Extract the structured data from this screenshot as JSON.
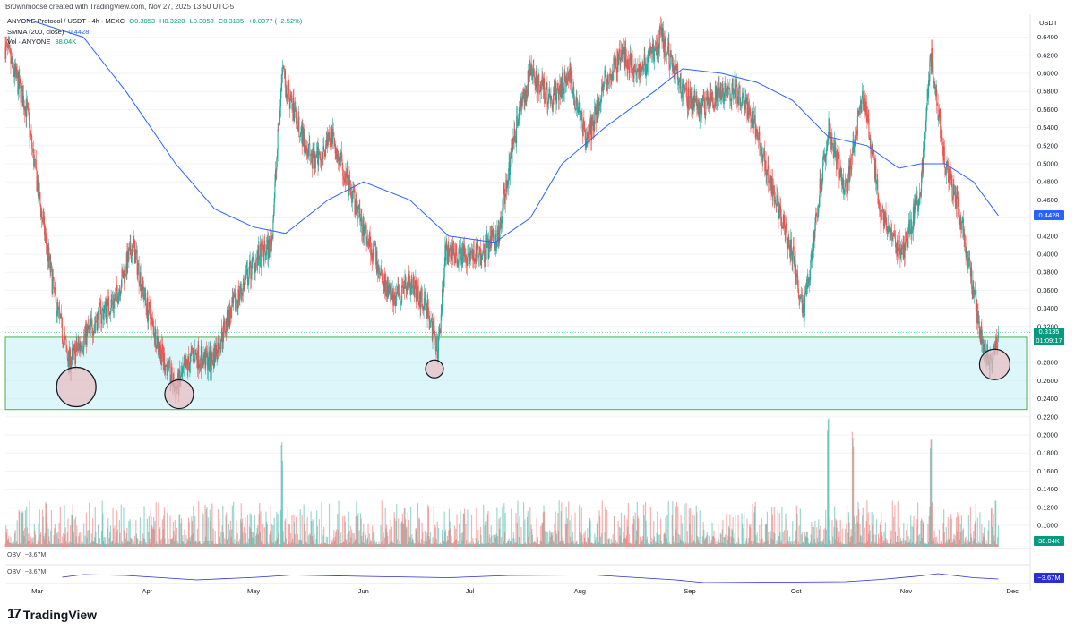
{
  "header": {
    "topline": "Br0wnmoose created with TradingView.com, Nov 27, 2025 13:50 UTC-5",
    "symbol_line": "ANYONE Protocol / USDT · 4h · MEXC",
    "ohlc": {
      "o": "O0.3053",
      "h": "H0.3220",
      "l": "L0.3050",
      "c": "C0.3135",
      "chg": "+0.0077 (+2.52%)"
    },
    "smma_label": "SMMA (200, close)",
    "smma_value": "0.4428",
    "vol_label": "Vol · ANYONE",
    "vol_value": "38.04K"
  },
  "price_axis": {
    "currency": "USDT",
    "ticks": [
      "0.6400",
      "0.6200",
      "0.6000",
      "0.5800",
      "0.5600",
      "0.5400",
      "0.5200",
      "0.5000",
      "0.4800",
      "0.4600",
      "0.4400",
      "0.4200",
      "0.4000",
      "0.3800",
      "0.3600",
      "0.3400",
      "0.3200",
      "0.2800",
      "0.2600",
      "0.2400",
      "0.2200",
      "0.2000",
      "0.1800",
      "0.1600",
      "0.1400",
      "0.1200",
      "0.1000"
    ]
  },
  "badges": {
    "smma": "0.4428",
    "last_price": "0.3135",
    "countdown": "01:09:17",
    "volume": "38.04K",
    "obv": "−3.67M"
  },
  "obv": {
    "label": "OBV",
    "value": "−3.67M"
  },
  "time_axis": [
    "Mar",
    "Apr",
    "May",
    "Jun",
    "Jul",
    "Aug",
    "Sep",
    "Oct",
    "Nov",
    "Dec"
  ],
  "colors": {
    "up": "#26a69a",
    "down": "#ef5350",
    "smma": "#2962ff",
    "zone_fill": "#b2ebf2",
    "zone_border": "#4caf50",
    "circle_fill": "#e8bcc1",
    "obv": "#2a2ed4",
    "badge_blue": "#2962ff",
    "badge_green": "#089981"
  },
  "logo": {
    "text": "TradingView"
  },
  "chart_data": {
    "type": "candlestick",
    "symbol": "ANYONE Protocol / USDT",
    "interval": "4h",
    "exchange": "MEXC",
    "x_range": [
      "2025-02-20",
      "2025-11-27"
    ],
    "ylim": [
      0.22,
      0.65
    ],
    "close_path": [
      {
        "date": "2025-02-20",
        "close": 0.63
      },
      {
        "date": "2025-02-26",
        "close": 0.56
      },
      {
        "date": "2025-03-02",
        "close": 0.45
      },
      {
        "date": "2025-03-06",
        "close": 0.35
      },
      {
        "date": "2025-03-10",
        "close": 0.28
      },
      {
        "date": "2025-03-13",
        "close": 0.3
      },
      {
        "date": "2025-03-18",
        "close": 0.33
      },
      {
        "date": "2025-03-23",
        "close": 0.35
      },
      {
        "date": "2025-03-28",
        "close": 0.41
      },
      {
        "date": "2025-04-01",
        "close": 0.34
      },
      {
        "date": "2025-04-05",
        "close": 0.29
      },
      {
        "date": "2025-04-09",
        "close": 0.25
      },
      {
        "date": "2025-04-14",
        "close": 0.29
      },
      {
        "date": "2025-04-19",
        "close": 0.28
      },
      {
        "date": "2025-04-24",
        "close": 0.33
      },
      {
        "date": "2025-05-01",
        "close": 0.39
      },
      {
        "date": "2025-05-06",
        "close": 0.41
      },
      {
        "date": "2025-05-09",
        "close": 0.6
      },
      {
        "date": "2025-05-13",
        "close": 0.55
      },
      {
        "date": "2025-05-18",
        "close": 0.5
      },
      {
        "date": "2025-05-23",
        "close": 0.53
      },
      {
        "date": "2025-05-30",
        "close": 0.45
      },
      {
        "date": "2025-06-04",
        "close": 0.4
      },
      {
        "date": "2025-06-09",
        "close": 0.35
      },
      {
        "date": "2025-06-14",
        "close": 0.37
      },
      {
        "date": "2025-06-19",
        "close": 0.34
      },
      {
        "date": "2025-06-22",
        "close": 0.29
      },
      {
        "date": "2025-06-24",
        "close": 0.4
      },
      {
        "date": "2025-06-29",
        "close": 0.4
      },
      {
        "date": "2025-07-04",
        "close": 0.4
      },
      {
        "date": "2025-07-09",
        "close": 0.42
      },
      {
        "date": "2025-07-13",
        "close": 0.52
      },
      {
        "date": "2025-07-18",
        "close": 0.6
      },
      {
        "date": "2025-07-24",
        "close": 0.57
      },
      {
        "date": "2025-07-29",
        "close": 0.6
      },
      {
        "date": "2025-08-03",
        "close": 0.52
      },
      {
        "date": "2025-08-08",
        "close": 0.59
      },
      {
        "date": "2025-08-13",
        "close": 0.62
      },
      {
        "date": "2025-08-18",
        "close": 0.6
      },
      {
        "date": "2025-08-24",
        "close": 0.64
      },
      {
        "date": "2025-08-30",
        "close": 0.58
      },
      {
        "date": "2025-09-04",
        "close": 0.56
      },
      {
        "date": "2025-09-09",
        "close": 0.58
      },
      {
        "date": "2025-09-14",
        "close": 0.58
      },
      {
        "date": "2025-09-19",
        "close": 0.55
      },
      {
        "date": "2025-09-25",
        "close": 0.46
      },
      {
        "date": "2025-09-30",
        "close": 0.4
      },
      {
        "date": "2025-10-03",
        "close": 0.33
      },
      {
        "date": "2025-10-06",
        "close": 0.42
      },
      {
        "date": "2025-10-10",
        "close": 0.54
      },
      {
        "date": "2025-10-15",
        "close": 0.47
      },
      {
        "date": "2025-10-20",
        "close": 0.58
      },
      {
        "date": "2025-10-25",
        "close": 0.44
      },
      {
        "date": "2025-10-31",
        "close": 0.4
      },
      {
        "date": "2025-11-05",
        "close": 0.47
      },
      {
        "date": "2025-11-08",
        "close": 0.62
      },
      {
        "date": "2025-11-12",
        "close": 0.5
      },
      {
        "date": "2025-11-16",
        "close": 0.45
      },
      {
        "date": "2025-11-19",
        "close": 0.38
      },
      {
        "date": "2025-11-22",
        "close": 0.31
      },
      {
        "date": "2025-11-25",
        "close": 0.28
      },
      {
        "date": "2025-11-27",
        "close": 0.3135
      }
    ],
    "smma_path": [
      {
        "date": "2025-02-26",
        "value": 0.66
      },
      {
        "date": "2025-03-14",
        "value": 0.64
      },
      {
        "date": "2025-03-26",
        "value": 0.58
      },
      {
        "date": "2025-04-09",
        "value": 0.5
      },
      {
        "date": "2025-04-20",
        "value": 0.45
      },
      {
        "date": "2025-05-01",
        "value": 0.43
      },
      {
        "date": "2025-05-10",
        "value": 0.423
      },
      {
        "date": "2025-05-22",
        "value": 0.46
      },
      {
        "date": "2025-06-01",
        "value": 0.48
      },
      {
        "date": "2025-06-14",
        "value": 0.46
      },
      {
        "date": "2025-06-25",
        "value": 0.42
      },
      {
        "date": "2025-07-08",
        "value": 0.413
      },
      {
        "date": "2025-07-18",
        "value": 0.44
      },
      {
        "date": "2025-07-27",
        "value": 0.5
      },
      {
        "date": "2025-08-08",
        "value": 0.54
      },
      {
        "date": "2025-08-22",
        "value": 0.58
      },
      {
        "date": "2025-08-30",
        "value": 0.605
      },
      {
        "date": "2025-09-10",
        "value": 0.6
      },
      {
        "date": "2025-09-20",
        "value": 0.59
      },
      {
        "date": "2025-09-30",
        "value": 0.57
      },
      {
        "date": "2025-10-10",
        "value": 0.53
      },
      {
        "date": "2025-10-21",
        "value": 0.52
      },
      {
        "date": "2025-10-30",
        "value": 0.495
      },
      {
        "date": "2025-11-05",
        "value": 0.5
      },
      {
        "date": "2025-11-12",
        "value": 0.5
      },
      {
        "date": "2025-11-20",
        "value": 0.48
      },
      {
        "date": "2025-11-27",
        "value": 0.4428
      }
    ],
    "support_zone": {
      "from": "2025-02-20",
      "to": "2025-12-05",
      "low": 0.228,
      "high": 0.308
    },
    "highlight_circles": [
      {
        "date": "2025-03-12",
        "price": 0.253
      },
      {
        "date": "2025-04-10",
        "price": 0.245
      },
      {
        "date": "2025-06-21",
        "price": 0.273
      },
      {
        "date": "2025-11-26",
        "price": 0.278
      }
    ],
    "volume": {
      "last": "38.04K",
      "ylim": [
        0,
        0.22
      ],
      "spikes": [
        {
          "date": "2025-05-09",
          "value": 0.18
        },
        {
          "date": "2025-10-10",
          "value": 0.22
        },
        {
          "date": "2025-10-17",
          "value": 0.21
        },
        {
          "date": "2025-11-08",
          "value": 0.21
        }
      ]
    },
    "obv_path": [
      {
        "date": "2025-03-08",
        "value": 0.0
      },
      {
        "date": "2025-03-14",
        "value": 0.6
      },
      {
        "date": "2025-03-26",
        "value": 0.4
      },
      {
        "date": "2025-04-15",
        "value": -0.6
      },
      {
        "date": "2025-05-02",
        "value": 0.0
      },
      {
        "date": "2025-05-12",
        "value": 0.5
      },
      {
        "date": "2025-06-01",
        "value": 0.2
      },
      {
        "date": "2025-06-25",
        "value": -0.1
      },
      {
        "date": "2025-07-12",
        "value": 0.4
      },
      {
        "date": "2025-08-05",
        "value": 0.5
      },
      {
        "date": "2025-08-28",
        "value": -0.6
      },
      {
        "date": "2025-09-05",
        "value": -1.2
      },
      {
        "date": "2025-10-15",
        "value": -1.0
      },
      {
        "date": "2025-10-25",
        "value": -0.5
      },
      {
        "date": "2025-11-05",
        "value": 0.3
      },
      {
        "date": "2025-11-10",
        "value": 0.8
      },
      {
        "date": "2025-11-20",
        "value": -0.1
      },
      {
        "date": "2025-11-27",
        "value": -0.4
      }
    ],
    "xlabel": "",
    "ylabel": ""
  }
}
